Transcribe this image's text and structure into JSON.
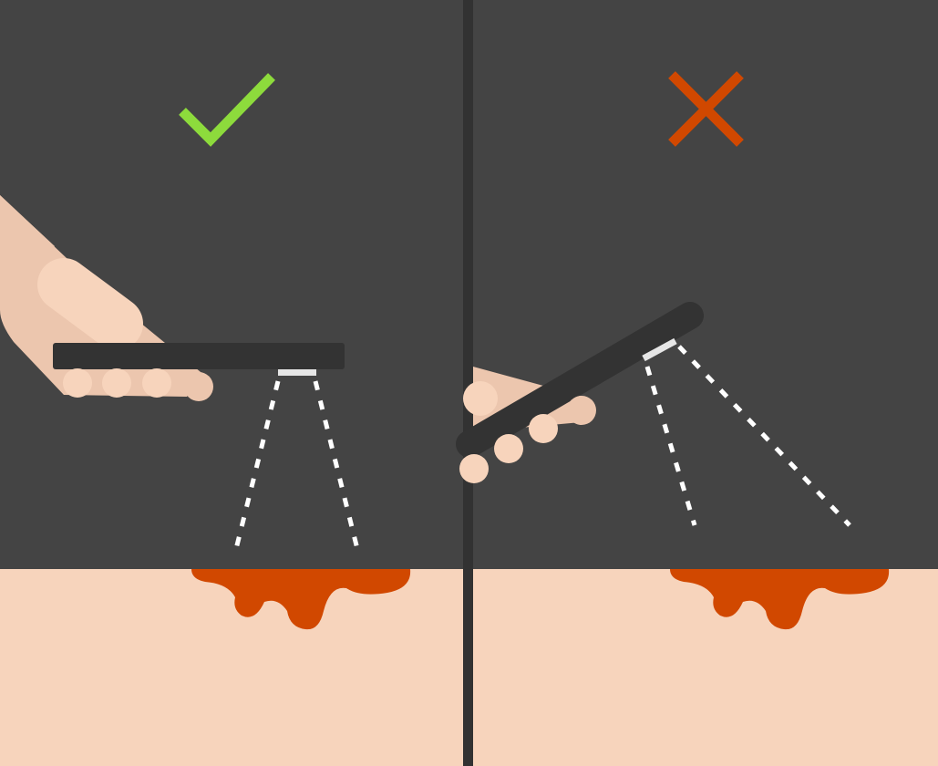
{
  "illustration": {
    "panels": [
      {
        "id": "correct",
        "verdict": "correct",
        "symbol_icon": "checkmark-icon"
      },
      {
        "id": "incorrect",
        "verdict": "incorrect",
        "symbol_icon": "cross-icon"
      }
    ]
  },
  "colors": {
    "background": "#444444",
    "divider": "#323232",
    "floor": "#f7d4bc",
    "stain": "#d14800",
    "check": "#8ddb3c",
    "cross": "#d14800",
    "device": "#333333",
    "emitter": "#e6e6e6",
    "hand": "#ecc6ae",
    "fingers": "#f7d4bc",
    "beam": "#ffffff"
  }
}
